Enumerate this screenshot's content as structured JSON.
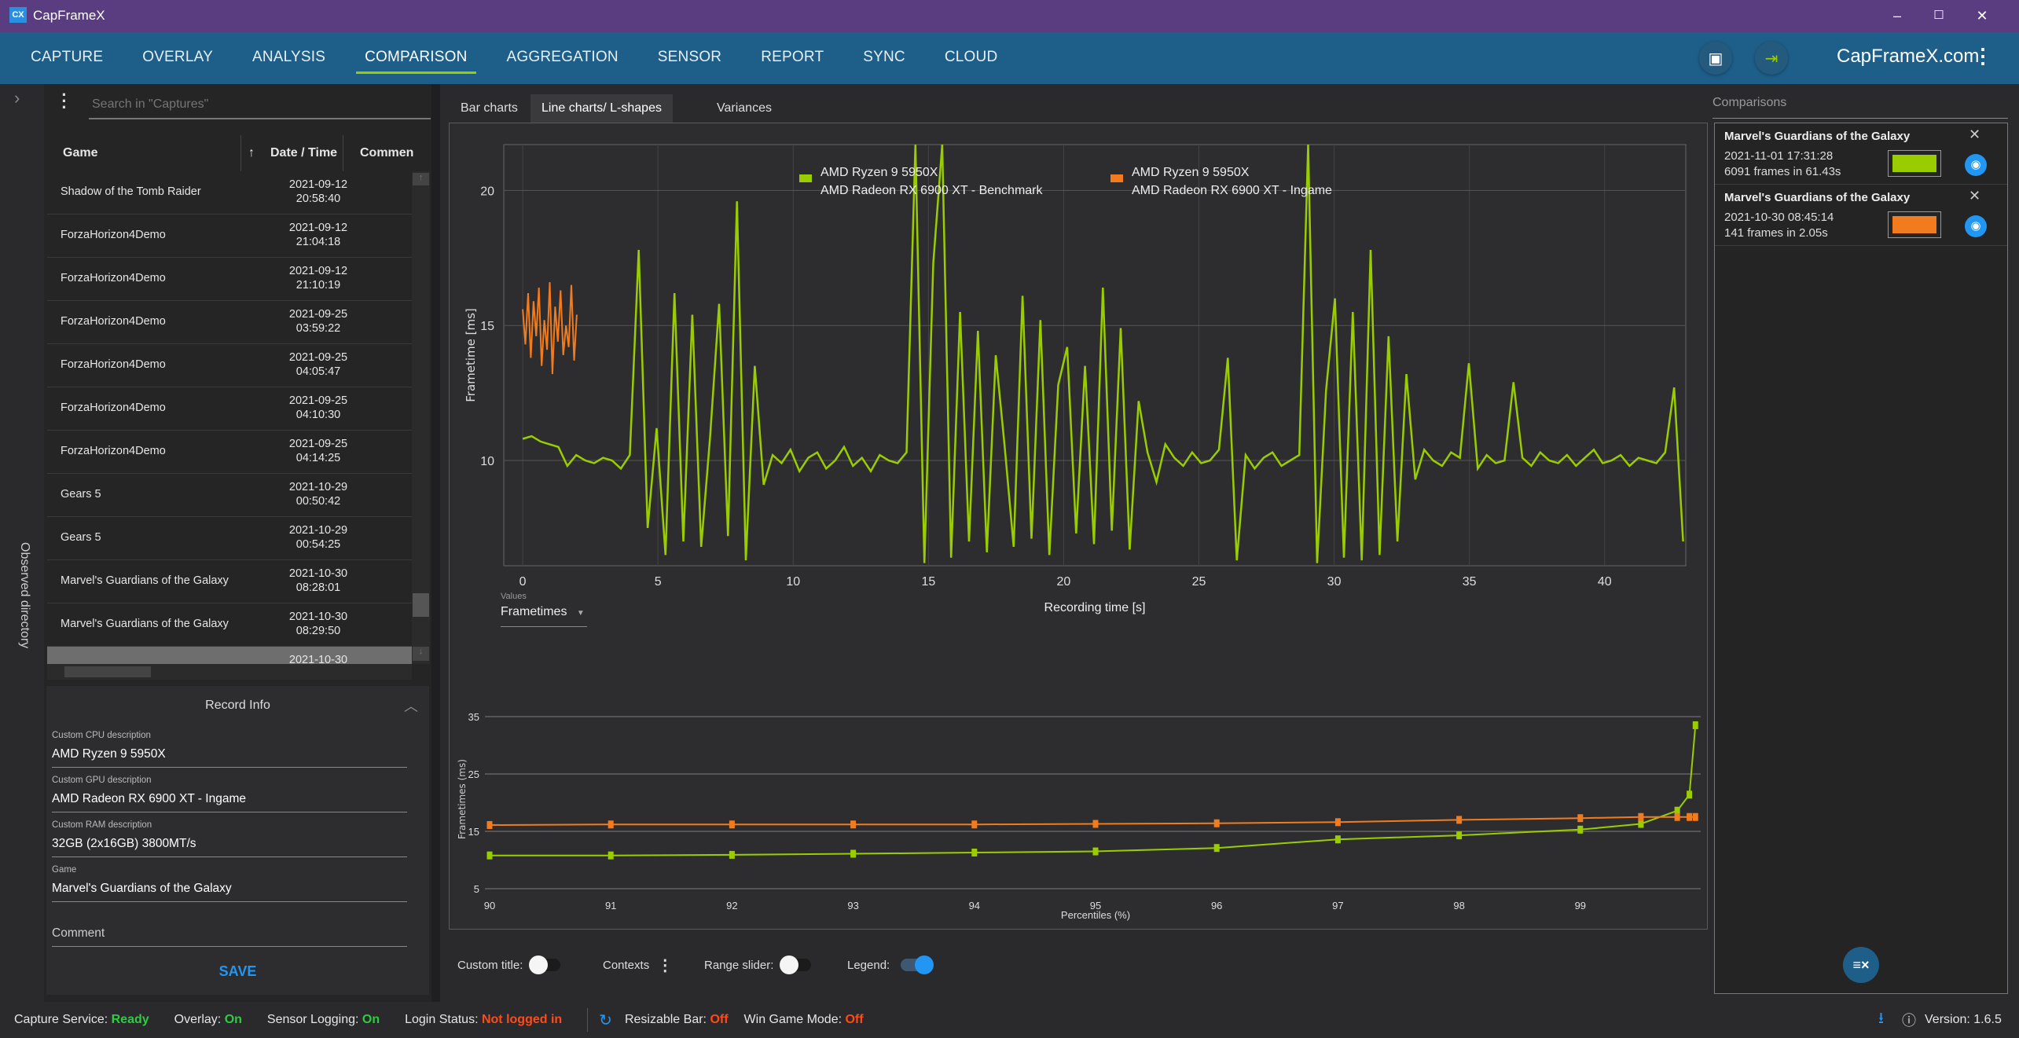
{
  "window": {
    "title": "CapFrameX",
    "logo": "CX",
    "minimize": "–",
    "maximize": "☐",
    "close": "✕"
  },
  "nav": {
    "items": [
      "CAPTURE",
      "OVERLAY",
      "ANALYSIS",
      "COMPARISON",
      "AGGREGATION",
      "SENSOR",
      "REPORT",
      "SYNC",
      "CLOUD"
    ],
    "active": "COMPARISON",
    "site": "CapFrameX.com",
    "icons": [
      "screenshot-gallery-icon",
      "login-icon",
      "more-vert-icon"
    ]
  },
  "sidebar": {
    "observed_directory": "Observed directory"
  },
  "captures": {
    "search_placeholder": "Search in \"Captures\"",
    "columns": [
      "Game",
      "Date / Time",
      "Commen"
    ],
    "rows": [
      {
        "game": "Shadow of the Tomb Raider",
        "date": "2021-09-12",
        "time": "20:58:40"
      },
      {
        "game": "ForzaHorizon4Demo",
        "date": "2021-09-12",
        "time": "21:04:18"
      },
      {
        "game": "ForzaHorizon4Demo",
        "date": "2021-09-12",
        "time": "21:10:19"
      },
      {
        "game": "ForzaHorizon4Demo",
        "date": "2021-09-25",
        "time": "03:59:22"
      },
      {
        "game": "ForzaHorizon4Demo",
        "date": "2021-09-25",
        "time": "04:05:47"
      },
      {
        "game": "ForzaHorizon4Demo",
        "date": "2021-09-25",
        "time": "04:10:30"
      },
      {
        "game": "ForzaHorizon4Demo",
        "date": "2021-09-25",
        "time": "04:14:25"
      },
      {
        "game": "Gears 5",
        "date": "2021-10-29",
        "time": "00:50:42"
      },
      {
        "game": "Gears 5",
        "date": "2021-10-29",
        "time": "00:54:25"
      },
      {
        "game": "Marvel's Guardians of the Galaxy",
        "date": "2021-10-30",
        "time": "08:28:01"
      },
      {
        "game": "Marvel's Guardians of the Galaxy",
        "date": "2021-10-30",
        "time": "08:29:50"
      },
      {
        "game": "",
        "date": "2021-10-30",
        "time": ""
      }
    ]
  },
  "record_info": {
    "title": "Record Info",
    "fields": [
      {
        "label": "Custom CPU description",
        "value": "AMD Ryzen 9 5950X"
      },
      {
        "label": "Custom GPU description",
        "value": "AMD Radeon RX 6900 XT - Ingame"
      },
      {
        "label": "Custom RAM description",
        "value": "32GB (2x16GB) 3800MT/s"
      },
      {
        "label": "Game",
        "value": "Marvel's Guardians of the Galaxy"
      }
    ],
    "comment_placeholder": "Comment",
    "save": "SAVE"
  },
  "tabs": [
    "Bar charts",
    "Line charts/ L-shapes",
    "Variances"
  ],
  "active_tab": "Line charts/ L-shapes",
  "values_selector": {
    "label": "Values",
    "value": "Frametimes"
  },
  "chart_controls": {
    "custom_title": "Custom title:",
    "custom_title_on": false,
    "contexts": "Contexts",
    "range_slider": "Range slider:",
    "range_slider_on": false,
    "legend": "Legend:",
    "legend_on": true
  },
  "colors": {
    "benchmark": "#9acd00",
    "ingame": "#f07c1f",
    "accent": "#2196f3",
    "nav": "#1e5f8a",
    "titlebar": "#5a3c80"
  },
  "chart_data": [
    {
      "type": "line",
      "xlabel": "Recording time [s]",
      "ylabel": "Frametime [ms]",
      "xlim": [
        -0.7,
        43
      ],
      "ylim": [
        6.1,
        21.7
      ],
      "xticks": [
        0,
        5,
        10,
        15,
        20,
        25,
        30,
        35,
        40
      ],
      "yticks": [
        10,
        15,
        20
      ],
      "grid": true,
      "legend": "top",
      "series": [
        {
          "name": "AMD Ryzen 9 5950X\nAMD Radeon RX 6900 XT - Benchmark",
          "name_lines": [
            "AMD Ryzen 9 5950X",
            "AMD Radeon RX 6900 XT - Benchmark"
          ],
          "color": "#9acd00",
          "x_start": 0,
          "x_step": 0.33,
          "values": [
            10.8,
            10.9,
            10.7,
            10.6,
            10.5,
            9.8,
            10.2,
            10.0,
            9.9,
            10.1,
            10.0,
            9.7,
            10.2,
            17.8,
            7.5,
            11.2,
            6.5,
            16.2,
            7.0,
            15.4,
            6.8,
            10.9,
            15.8,
            7.2,
            19.6,
            6.3,
            13.5,
            9.1,
            10.2,
            9.9,
            10.4,
            9.6,
            10.1,
            10.3,
            9.7,
            10.0,
            10.5,
            9.8,
            10.1,
            9.6,
            10.2,
            10.0,
            9.9,
            10.3,
            21.7,
            6.2,
            17.3,
            21.7,
            6.4,
            15.5,
            7.0,
            14.8,
            6.6,
            13.9,
            10.5,
            6.8,
            16.1,
            7.1,
            15.2,
            6.5,
            12.8,
            14.2,
            7.3,
            13.5,
            6.9,
            16.4,
            7.4,
            14.9,
            6.7,
            12.2,
            10.3,
            9.2,
            10.6,
            10.1,
            9.8,
            10.3,
            9.9,
            10.0,
            10.4,
            13.8,
            6.3,
            10.2,
            9.7,
            10.1,
            10.3,
            9.8,
            10.0,
            10.2,
            21.7,
            6.2,
            12.6,
            16.0,
            6.4,
            15.5,
            6.3,
            17.8,
            6.5,
            14.6,
            7.0,
            13.2,
            9.3,
            10.4,
            10.0,
            9.8,
            10.3,
            10.1,
            13.6,
            9.7,
            10.2,
            9.9,
            10.0,
            12.9,
            10.1,
            9.8,
            10.3,
            10.0,
            9.9,
            10.2,
            9.8,
            10.1,
            10.4,
            9.9,
            10.0,
            10.2,
            9.8,
            10.1,
            10.0,
            9.9,
            10.3,
            12.7,
            7.0
          ]
        },
        {
          "name": "AMD Ryzen 9 5950X\nAMD Radeon RX 6900 XT - Ingame",
          "name_lines": [
            "AMD Ryzen 9 5950X",
            "AMD Radeon RX 6900 XT - Ingame"
          ],
          "color": "#f07c1f",
          "x_start": 0,
          "x_step": 0.1,
          "values": [
            15.6,
            14.3,
            16.2,
            13.8,
            15.9,
            14.6,
            16.4,
            13.5,
            15.2,
            14.1,
            16.6,
            13.2,
            15.7,
            14.4,
            16.3,
            13.9,
            15.0,
            14.2,
            16.5,
            13.7,
            15.4
          ]
        }
      ]
    },
    {
      "type": "line",
      "xlabel": "Percentiles (%)",
      "ylabel": "Frametimes (ms)",
      "xlim": [
        90,
        100
      ],
      "ylim": [
        5,
        35
      ],
      "xticks": [
        90,
        91,
        92,
        93,
        94,
        95,
        96,
        97,
        98,
        99
      ],
      "yticks": [
        5,
        15,
        25,
        35
      ],
      "grid": true,
      "x": [
        90,
        91,
        92,
        93,
        94,
        95,
        96,
        97,
        98,
        99,
        99.5,
        99.8,
        99.9,
        99.95
      ],
      "series": [
        {
          "color": "#9acd00",
          "values": [
            10.8,
            10.8,
            10.9,
            11.1,
            11.3,
            11.5,
            12.1,
            13.6,
            14.3,
            15.3,
            16.3,
            18.6,
            21.4,
            33.5
          ]
        },
        {
          "color": "#f07c1f",
          "values": [
            16.1,
            16.2,
            16.2,
            16.2,
            16.2,
            16.3,
            16.4,
            16.6,
            17.0,
            17.3,
            17.5,
            17.5,
            17.5,
            17.5
          ]
        }
      ]
    }
  ],
  "comparisons": {
    "title": "Comparisons",
    "items": [
      {
        "game": "Marvel's Guardians of the Galaxy",
        "datetime": "2021-11-01 17:31:28",
        "frames": "6091 frames in 61.43s",
        "color": "#9acd00"
      },
      {
        "game": "Marvel's Guardians of the Galaxy",
        "datetime": "2021-10-30 08:45:14",
        "frames": "141 frames in 2.05s",
        "color": "#f07c1f"
      }
    ]
  },
  "status": {
    "capture_service": "Capture Service:",
    "capture_service_value": "Ready",
    "overlay": "Overlay:",
    "overlay_value": "On",
    "sensor_logging": "Sensor Logging:",
    "sensor_logging_value": "On",
    "login_status": "Login Status:",
    "login_status_value": "Not logged in",
    "resizable_bar": "Resizable Bar:",
    "resizable_bar_value": "Off",
    "win_game_mode": "Win Game Mode:",
    "win_game_mode_value": "Off",
    "version": "Version:",
    "version_value": "1.6.5"
  }
}
